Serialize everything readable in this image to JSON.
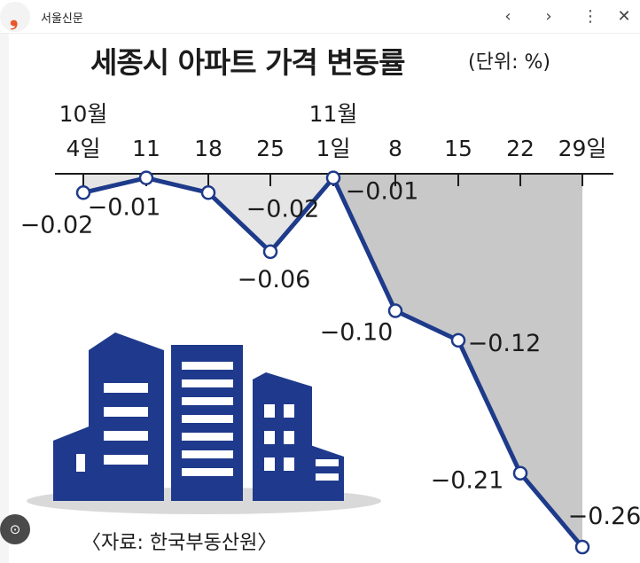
{
  "topbar": {
    "site_name": "서울신문",
    "back_icon": "chevron-left-icon",
    "forward_icon": "chevron-right-icon",
    "menu_icon": "more-vertical-icon",
    "lens_icon": "lens-icon"
  },
  "source": "〈자료: 한국부동산원〉",
  "chart_data": {
    "type": "line",
    "title": "세종시 아파트 가격 변동률",
    "unit": "(단위: %)",
    "month_labels": [
      "10월",
      "11월"
    ],
    "categories": [
      "4일",
      "11",
      "18",
      "25",
      "1일",
      "8",
      "15",
      "22",
      "29일"
    ],
    "values": [
      -0.02,
      -0.01,
      -0.02,
      -0.06,
      -0.01,
      -0.1,
      -0.12,
      -0.21,
      -0.26
    ],
    "data_labels": [
      "−0.02",
      "−0.01",
      "−0.02",
      "−0.06",
      "−0.01",
      "−0.10",
      "−0.12",
      "−0.21",
      "−0.26"
    ],
    "ylim": [
      -0.26,
      0
    ],
    "grid": false,
    "colors": {
      "line": "#1e3a8a",
      "fill_october": "#e5e5e5",
      "fill_november": "#c8c8c8",
      "building": "#1f3a8c",
      "ground": "#d9d9d9"
    }
  }
}
